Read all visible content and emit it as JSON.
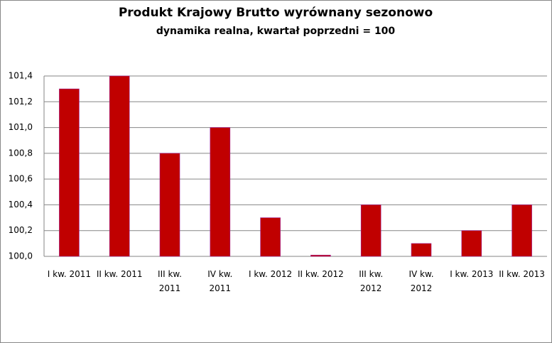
{
  "chart_data": {
    "type": "bar",
    "title": "Produkt Krajowy Brutto wyrównany sezonowo",
    "subtitle": "dynamika realna, kwartał poprzedni = 100",
    "categories": [
      "I kw. 2011",
      "II kw. 2011",
      "III kw. 2011",
      "IV kw. 2011",
      "I kw. 2012",
      "II kw. 2012",
      "III kw. 2012",
      "IV kw. 2012",
      "I kw. 2013",
      "II kw. 2013"
    ],
    "values": [
      101.3,
      101.4,
      100.8,
      101.0,
      100.3,
      100.01,
      100.4,
      100.1,
      100.2,
      100.4
    ],
    "color": "#c00000",
    "ylim": [
      100.0,
      101.4
    ],
    "yticks": [
      {
        "value": 100.0,
        "label": "100,0"
      },
      {
        "value": 100.2,
        "label": "100,2"
      },
      {
        "value": 100.4,
        "label": "100,4"
      },
      {
        "value": 100.6,
        "label": "100,6"
      },
      {
        "value": 100.8,
        "label": "100,8"
      },
      {
        "value": 101.0,
        "label": "101,0"
      },
      {
        "value": 101.2,
        "label": "101,2"
      },
      {
        "value": 101.4,
        "label": "101,4"
      }
    ],
    "grid": true
  }
}
